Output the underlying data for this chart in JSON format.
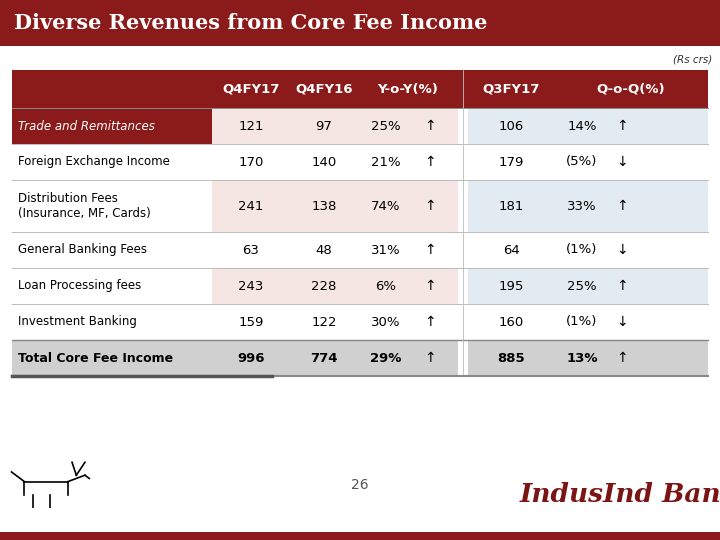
{
  "title": "Diverse Revenues from Core Fee Income",
  "subtitle": "(Rs crs)",
  "title_bg": "#8B1A1A",
  "title_text_color": "#FFFFFF",
  "header_bg": "#8B1A1A",
  "header_text_color": "#FFFFFF",
  "background_color": "#FFFFFF",
  "columns": [
    "Q4FY17",
    "Q4FY16",
    "Y-o-Y(%)",
    "Q3FY17",
    "Q-o-Q(%)"
  ],
  "rows": [
    {
      "label": "Trade and Remittances",
      "label_bold": false,
      "label_italic": true,
      "label_color": "#FFFFFF",
      "label_bg": "#8B1A1A",
      "left_bg": "#F5E6E3",
      "right_bg": "#E3EBF2",
      "values": [
        "121",
        "97",
        "25%",
        "↑",
        "106",
        "14%",
        "↑"
      ],
      "is_total": false
    },
    {
      "label": "Foreign Exchange Income",
      "label_bold": false,
      "label_italic": false,
      "label_color": "#000000",
      "label_bg": "#FFFFFF",
      "left_bg": "#FFFFFF",
      "right_bg": "#FFFFFF",
      "values": [
        "170",
        "140",
        "21%",
        "↑",
        "179",
        "(5%)",
        "↓"
      ],
      "is_total": false
    },
    {
      "label": "Distribution Fees\n(Insurance, MF, Cards)",
      "label_bold": false,
      "label_italic": false,
      "label_color": "#000000",
      "label_bg": "#FFFFFF",
      "left_bg": "#F5E6E3",
      "right_bg": "#E3EBF2",
      "values": [
        "241",
        "138",
        "74%",
        "↑",
        "181",
        "33%",
        "↑"
      ],
      "is_total": false,
      "tall": true
    },
    {
      "label": "General Banking Fees",
      "label_bold": false,
      "label_italic": false,
      "label_color": "#000000",
      "label_bg": "#FFFFFF",
      "left_bg": "#FFFFFF",
      "right_bg": "#FFFFFF",
      "values": [
        "63",
        "48",
        "31%",
        "↑",
        "64",
        "(1%)",
        "↓"
      ],
      "is_total": false
    },
    {
      "label": "Loan Processing fees",
      "label_bold": false,
      "label_italic": false,
      "label_color": "#000000",
      "label_bg": "#FFFFFF",
      "left_bg": "#F5E6E3",
      "right_bg": "#E3EBF2",
      "values": [
        "243",
        "228",
        "6%",
        "↑",
        "195",
        "25%",
        "↑"
      ],
      "is_total": false
    },
    {
      "label": "Investment Banking",
      "label_bold": false,
      "label_italic": false,
      "label_color": "#000000",
      "label_bg": "#FFFFFF",
      "left_bg": "#FFFFFF",
      "right_bg": "#FFFFFF",
      "values": [
        "159",
        "122",
        "30%",
        "↑",
        "160",
        "(1%)",
        "↓"
      ],
      "is_total": false
    },
    {
      "label": "Total Core Fee Income",
      "label_bold": true,
      "label_italic": false,
      "label_color": "#000000",
      "label_bg": "#D0D0D0",
      "left_bg": "#D0D0D0",
      "right_bg": "#D0D0D0",
      "values": [
        "996",
        "774",
        "29%",
        "↑",
        "885",
        "13%",
        "↑"
      ],
      "is_total": true
    }
  ],
  "page_number": "26"
}
